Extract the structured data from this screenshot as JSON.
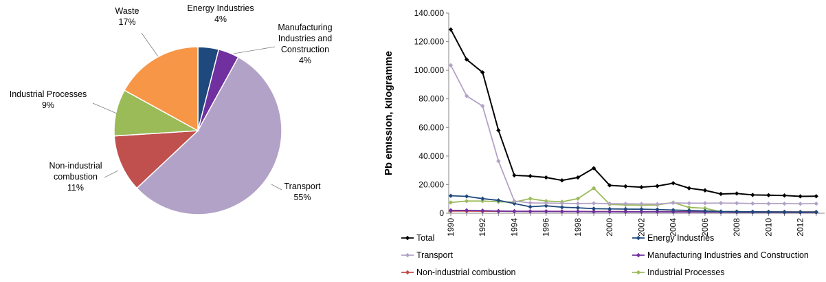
{
  "chart_data": [
    {
      "type": "pie",
      "slices": [
        {
          "label": "Energy Industries",
          "value": 4,
          "pct_label": "4%",
          "color": "#1F497D"
        },
        {
          "label": "Manufacturing Industries and Construction",
          "label_lines": [
            "Manufacturing",
            "Industries and",
            "Construction"
          ],
          "value": 4,
          "pct_label": "4%",
          "color": "#7030A0"
        },
        {
          "label": "Transport",
          "value": 55,
          "pct_label": "55%",
          "color": "#B3A2C7"
        },
        {
          "label": "Non-industrial combustion",
          "label_lines": [
            "Non-industrial",
            "combustion"
          ],
          "value": 11,
          "pct_label": "11%",
          "color": "#C0504D"
        },
        {
          "label": "Industrial Processes",
          "value": 9,
          "pct_label": "9%",
          "color": "#9BBB59"
        },
        {
          "label": "Waste",
          "value": 17,
          "pct_label": "17%",
          "color": "#F79646"
        }
      ]
    },
    {
      "type": "line",
      "ylabel": "Pb emission, kilogramme",
      "ylim": [
        0,
        140000
      ],
      "y_ticks": [
        0,
        20000,
        40000,
        60000,
        80000,
        100000,
        120000,
        140000
      ],
      "y_tick_labels": [
        "0",
        "20.000",
        "40.000",
        "60.000",
        "80.000",
        "100.000",
        "120.000",
        "140.000"
      ],
      "x": [
        1990,
        1991,
        1992,
        1993,
        1994,
        1995,
        1996,
        1997,
        1998,
        1999,
        2000,
        2001,
        2002,
        2003,
        2004,
        2005,
        2006,
        2007,
        2008,
        2009,
        2010,
        2011,
        2012,
        2013
      ],
      "x_tick_labels": [
        "1990",
        "1992",
        "1994",
        "1996",
        "1998",
        "2000",
        "2002",
        "2004",
        "2006",
        "2008",
        "2010",
        "2012"
      ],
      "grid": false,
      "legend_position": "bottom",
      "series": [
        {
          "name": "Total",
          "color": "#000000",
          "values": [
            128500,
            107500,
            98500,
            58000,
            26500,
            26000,
            25000,
            23000,
            25000,
            31500,
            19500,
            18800,
            18200,
            19000,
            21000,
            17500,
            16000,
            13500,
            13800,
            12800,
            12600,
            12400,
            11800,
            11900
          ]
        },
        {
          "name": "Energy Industries",
          "color": "#1F497D",
          "values": [
            12200,
            11800,
            10200,
            9000,
            6800,
            4500,
            5200,
            4200,
            3800,
            3200,
            3000,
            2900,
            2800,
            2600,
            2200,
            1900,
            1600,
            1200,
            1100,
            1000,
            950,
            900,
            850,
            800
          ]
        },
        {
          "name": "Transport",
          "color": "#B3A2C7",
          "values": [
            103500,
            82000,
            75000,
            36500,
            8500,
            7200,
            7100,
            6900,
            6800,
            6900,
            6700,
            6600,
            6500,
            6400,
            7200,
            7000,
            7000,
            7100,
            7000,
            6800,
            6700,
            6700,
            6600,
            6700
          ]
        },
        {
          "name": "Manufacturing Industries and Construction",
          "color": "#7030A0",
          "values": [
            2000,
            2000,
            1800,
            1500,
            1400,
            1300,
            1300,
            1200,
            1200,
            1100,
            1100,
            1000,
            1000,
            1000,
            900,
            900,
            800,
            800,
            700,
            700,
            700,
            600,
            600,
            600
          ]
        },
        {
          "name": "Non-industrial combustion",
          "color": "#C0504D",
          "values": [
            1500,
            1500,
            1400,
            1400,
            1300,
            1300,
            1300,
            1300,
            1200,
            1200,
            1200,
            1200,
            1100,
            1100,
            1100,
            1100,
            1000,
            1000,
            1000,
            1000,
            900,
            900,
            900,
            900
          ]
        },
        {
          "name": "Industrial Processes",
          "color": "#9BBB59",
          "values": [
            7500,
            8500,
            8500,
            8000,
            7800,
            10200,
            8500,
            8000,
            10200,
            17500,
            6200,
            5800,
            5600,
            5800,
            7500,
            4000,
            3500,
            1000,
            1200,
            900,
            1000,
            900,
            800,
            900
          ]
        }
      ],
      "legend_order": [
        "Total",
        "Energy Industries",
        "Transport",
        "Manufacturing Industries and Construction",
        "Non-industrial combustion",
        "Industrial Processes"
      ]
    }
  ]
}
